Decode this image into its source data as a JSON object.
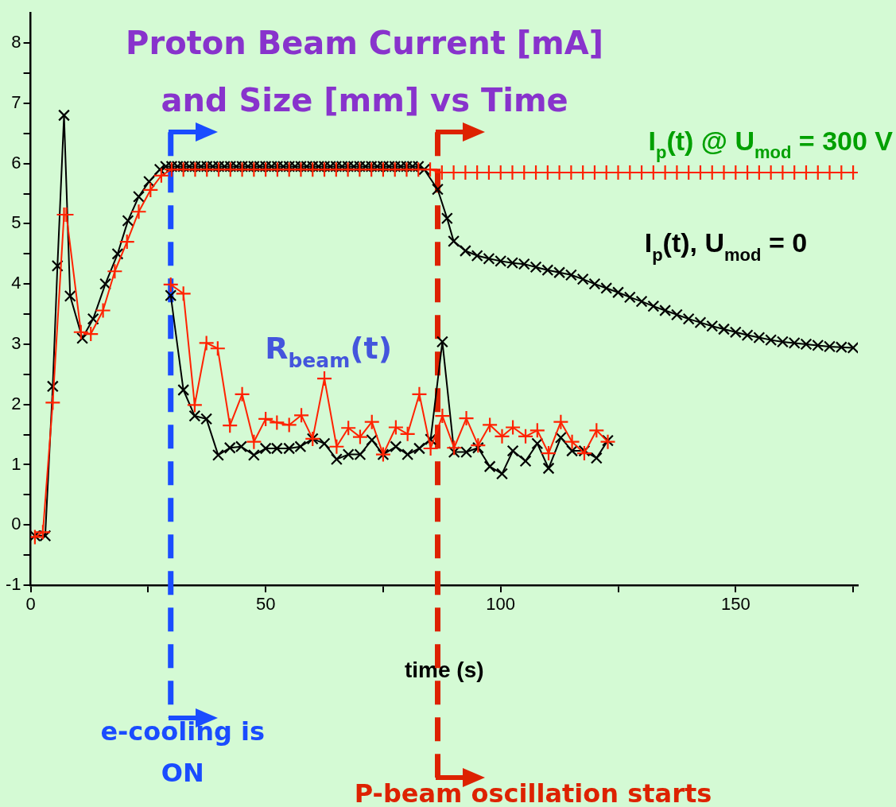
{
  "chart_data": {
    "type": "line",
    "title": "Proton Beam Current [mA] and Size [mm] vs Time",
    "xlabel": "time (s)",
    "xlim": [
      0,
      176
    ],
    "xticks": [
      0,
      {
        "value": 25,
        "label": null
      },
      50,
      {
        "value": 75,
        "label": null
      },
      100,
      {
        "value": 125,
        "label": null
      },
      150,
      {
        "value": 175,
        "label": null
      }
    ],
    "ylim": [
      -1,
      8.5
    ],
    "yticks": [
      -1,
      {
        "value": -0.5,
        "label": null
      },
      0,
      {
        "value": 0.5,
        "label": null
      },
      1,
      {
        "value": 1.5,
        "label": null
      },
      2,
      {
        "value": 2.5,
        "label": null
      },
      3,
      {
        "value": 3.5,
        "label": null
      },
      4,
      {
        "value": 4.5,
        "label": null
      },
      5,
      {
        "value": 5.5,
        "label": null
      },
      6,
      {
        "value": 6.5,
        "label": null
      },
      7,
      {
        "value": 7.5,
        "label": null
      },
      8
    ],
    "grid": false,
    "legend": false,
    "series": [
      {
        "name": "I$_{p}$(t) @ U$_{mod}$ = 300 V",
        "color": "#ff2200",
        "marker": "cross",
        "x": [
          0.9,
          2.6,
          4.7,
          7.1,
          7.6,
          10.7,
          12.8,
          15.4,
          17.9,
          20.5,
          23,
          25.5,
          27.8,
          30,
          32.5,
          35,
          37.5,
          40,
          42.5,
          45,
          47.5,
          50,
          52.5,
          55,
          57.5,
          60,
          62.5,
          65,
          67.5,
          70,
          72.5,
          75,
          77.5,
          80,
          82.5,
          85,
          87.5,
          90,
          92.5,
          95,
          97.5,
          100,
          102.5,
          105,
          107.5,
          110,
          112.5,
          115,
          117.5,
          120,
          122.5,
          125,
          127.5,
          130,
          132.5,
          135,
          137.5,
          140,
          142.5,
          145,
          147.5,
          150,
          152.5,
          155,
          157.5,
          160,
          162.5,
          165,
          167.5,
          170,
          172.5,
          175
        ],
        "values": [
          -0.2,
          -0.12,
          2.03,
          5.15,
          5.15,
          3.2,
          3.17,
          3.56,
          4.21,
          4.7,
          5.2,
          5.56,
          5.8,
          5.9,
          5.9,
          5.9,
          5.9,
          5.9,
          5.9,
          5.9,
          5.9,
          5.9,
          5.9,
          5.9,
          5.9,
          5.9,
          5.9,
          5.9,
          5.9,
          5.9,
          5.9,
          5.9,
          5.9,
          5.9,
          5.9,
          5.9,
          5.85,
          5.85,
          5.85,
          5.85,
          5.85,
          5.85,
          5.85,
          5.85,
          5.85,
          5.85,
          5.85,
          5.85,
          5.85,
          5.85,
          5.85,
          5.85,
          5.85,
          5.85,
          5.85,
          5.85,
          5.85,
          5.85,
          5.85,
          5.85,
          5.85,
          5.85,
          5.85,
          5.85,
          5.85,
          5.85,
          5.85,
          5.85,
          5.85,
          5.85,
          5.85,
          5.85
        ]
      },
      {
        "name": "I$_{p}$(t), U$_{mod}$ = 0",
        "color": "#000000",
        "marker": "x",
        "x": [
          0.9,
          3.1,
          4.7,
          5.7,
          7.1,
          8.4,
          11,
          13.3,
          15.9,
          18.5,
          20.7,
          23,
          25.2,
          27.5,
          28.75,
          30,
          31.25,
          32.5,
          33.75,
          35,
          36.25,
          37.5,
          38.75,
          40,
          41.25,
          42.5,
          43.75,
          45,
          46.25,
          47.5,
          48.75,
          50,
          51.25,
          52.5,
          53.75,
          55,
          56.25,
          57.5,
          58.75,
          60,
          61.25,
          62.5,
          63.75,
          65,
          66.25,
          67.5,
          68.75,
          70,
          71.25,
          72.5,
          73.75,
          75,
          76.25,
          77.5,
          78.75,
          80,
          81.25,
          82.5,
          83.75,
          86.6,
          88.6,
          90,
          92.5,
          95,
          97.5,
          100,
          102.5,
          105,
          107.5,
          110,
          112.5,
          115,
          117.5,
          120,
          122.5,
          125,
          127.5,
          130,
          132.5,
          135,
          137.5,
          140,
          142.5,
          145,
          147.5,
          150,
          152.5,
          155,
          157.5,
          160,
          162.5,
          165,
          167.5,
          170,
          172.5,
          175
        ],
        "values": [
          -0.18,
          -0.18,
          2.3,
          4.3,
          6.8,
          3.8,
          3.1,
          3.42,
          4.0,
          4.5,
          5.05,
          5.45,
          5.7,
          5.9,
          5.95,
          5.95,
          5.95,
          5.95,
          5.95,
          5.95,
          5.95,
          5.95,
          5.95,
          5.95,
          5.95,
          5.95,
          5.95,
          5.95,
          5.95,
          5.95,
          5.95,
          5.95,
          5.95,
          5.95,
          5.95,
          5.95,
          5.95,
          5.95,
          5.95,
          5.95,
          5.95,
          5.95,
          5.95,
          5.95,
          5.95,
          5.95,
          5.95,
          5.95,
          5.95,
          5.95,
          5.95,
          5.95,
          5.95,
          5.95,
          5.95,
          5.95,
          5.95,
          5.95,
          5.9,
          5.57,
          5.09,
          4.71,
          4.55,
          4.47,
          4.42,
          4.38,
          4.35,
          4.33,
          4.28,
          4.23,
          4.19,
          4.15,
          4.08,
          4.0,
          3.93,
          3.86,
          3.78,
          3.71,
          3.63,
          3.56,
          3.49,
          3.42,
          3.36,
          3.3,
          3.25,
          3.2,
          3.15,
          3.11,
          3.07,
          3.04,
          3.02,
          3.0,
          2.98,
          2.96,
          2.95,
          2.94
        ]
      },
      {
        "color": "#ff2200",
        "marker": "cross",
        "x": [
          29.8,
          32.5,
          34.9,
          37.4,
          39.8,
          42.4,
          45,
          47.5,
          50,
          52.4,
          55,
          57.6,
          60,
          62.5,
          65.1,
          67.6,
          70.1,
          72.6,
          75,
          77.7,
          80.2,
          82.7,
          85.1,
          87.6,
          90.1,
          92.7,
          95.2,
          97.7,
          100.3,
          102.6,
          105.3,
          107.8,
          110.2,
          112.8,
          115.2,
          117.8,
          120.4,
          122.8
        ],
        "values": [
          3.99,
          3.84,
          1.99,
          3.02,
          2.93,
          1.65,
          2.17,
          1.38,
          1.76,
          1.7,
          1.66,
          1.82,
          1.43,
          2.43,
          1.3,
          1.61,
          1.46,
          1.71,
          1.17,
          1.62,
          1.51,
          2.17,
          1.27,
          1.81,
          1.28,
          1.77,
          1.32,
          1.66,
          1.47,
          1.62,
          1.47,
          1.57,
          1.19,
          1.71,
          1.38,
          1.19,
          1.57,
          1.38
        ]
      },
      {
        "color": "#000000",
        "marker": "x",
        "x": [
          29.8,
          32.5,
          34.9,
          37.4,
          39.9,
          42.4,
          44.8,
          47.5,
          50,
          52.4,
          55,
          57.4,
          60,
          62.5,
          65.1,
          67.6,
          70.1,
          72.6,
          75,
          77.7,
          80.2,
          82.7,
          85.1,
          87.6,
          90.1,
          92.7,
          95.2,
          97.7,
          100.3,
          102.6,
          105.3,
          107.8,
          110.2,
          112.8,
          115.2,
          117.8,
          120.4,
          122.8
        ],
        "values": [
          3.81,
          2.24,
          1.81,
          1.76,
          1.16,
          1.28,
          1.3,
          1.16,
          1.27,
          1.27,
          1.27,
          1.3,
          1.43,
          1.35,
          1.09,
          1.17,
          1.17,
          1.41,
          1.17,
          1.3,
          1.17,
          1.27,
          1.42,
          3.04,
          1.21,
          1.21,
          1.28,
          0.97,
          0.85,
          1.23,
          1.06,
          1.35,
          0.94,
          1.45,
          1.23,
          1.23,
          1.11,
          1.4
        ]
      }
    ],
    "ref_lines": [
      {
        "axis": "x",
        "value": 29.8,
        "label": "e-cooling is ON",
        "color": "#1a4cff",
        "line_style": "dashed"
      },
      {
        "axis": "x",
        "value": 86.6,
        "label": "P-beam oscillation starts",
        "color": "#dd2200",
        "line_style": "dashed"
      }
    ],
    "annotations": [
      "R$_{beam}$(t)"
    ]
  }
}
